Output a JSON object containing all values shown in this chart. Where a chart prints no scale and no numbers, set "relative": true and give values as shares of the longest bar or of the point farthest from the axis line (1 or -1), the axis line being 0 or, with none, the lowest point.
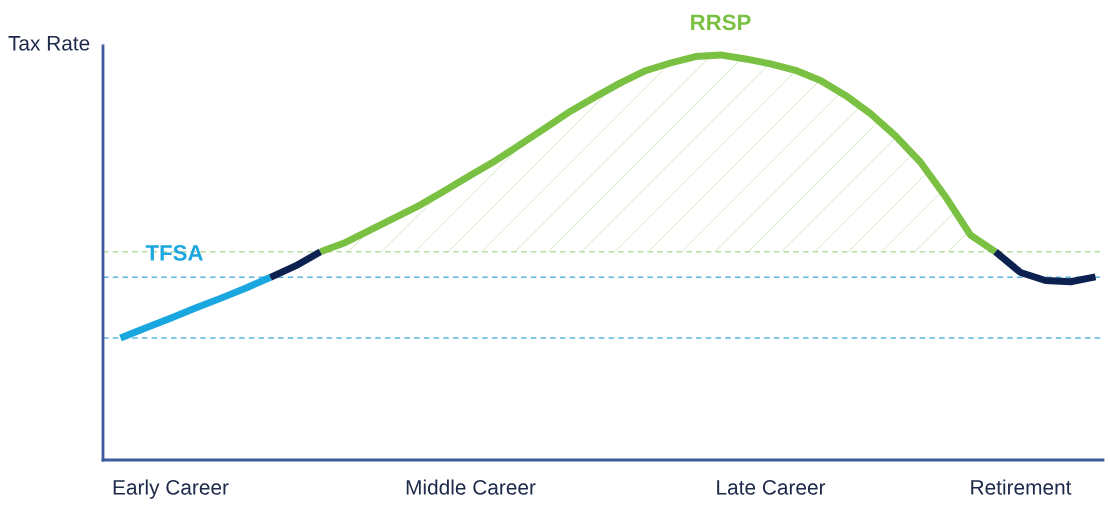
{
  "chart_data": {
    "type": "line",
    "relative": true,
    "ylabel": "Tax Rate",
    "categories": [
      null,
      null,
      "Early Career",
      null,
      null,
      null,
      null,
      null,
      null,
      null,
      null,
      null,
      null,
      null,
      "Middle Career",
      null,
      null,
      null,
      null,
      null,
      null,
      null,
      null,
      null,
      null,
      null,
      "Late Career",
      null,
      null,
      null,
      null,
      null,
      null,
      null,
      null,
      null,
      "Retirement",
      null,
      null,
      null
    ],
    "series": [
      {
        "name": "TFSA",
        "color": "#1aa7e0",
        "values": [
          0.301,
          0.326,
          0.35,
          0.375,
          0.399,
          0.424,
          0.451,
          null,
          null,
          null,
          null,
          null,
          null,
          null,
          null,
          null,
          null,
          null,
          null,
          null,
          null,
          null,
          null,
          null,
          null,
          null,
          null,
          null,
          null,
          null,
          null,
          null,
          null,
          null,
          null,
          null,
          null,
          null,
          null,
          null
        ]
      },
      {
        "color": "#0d2150",
        "values": [
          null,
          null,
          null,
          null,
          null,
          null,
          0.451,
          0.479,
          0.514,
          null,
          null,
          null,
          null,
          null,
          null,
          null,
          null,
          null,
          null,
          null,
          null,
          null,
          null,
          null,
          null,
          null,
          null,
          null,
          null,
          null,
          null,
          null,
          null,
          null,
          null,
          null,
          null,
          null,
          null,
          null
        ]
      },
      {
        "name": "RRSP",
        "color": "#7ac143",
        "values": [
          null,
          null,
          null,
          null,
          null,
          null,
          null,
          null,
          0.514,
          0.537,
          0.568,
          0.599,
          0.63,
          0.666,
          0.703,
          0.739,
          0.779,
          0.82,
          0.861,
          0.897,
          0.931,
          0.961,
          0.98,
          0.996,
          1.0,
          0.99,
          0.978,
          0.962,
          0.937,
          0.9,
          0.855,
          0.8,
          0.735,
          0.65,
          0.555,
          0.514,
          null,
          null,
          null,
          null
        ],
        "lower": [
          null,
          null,
          null,
          null,
          null,
          null,
          null,
          null,
          0.514,
          0.514,
          0.514,
          0.514,
          0.514,
          0.514,
          0.514,
          0.514,
          0.514,
          0.514,
          0.514,
          0.514,
          0.514,
          0.514,
          0.514,
          0.514,
          0.514,
          0.514,
          0.514,
          0.514,
          0.514,
          0.514,
          0.514,
          0.514,
          0.514,
          0.514,
          0.514,
          0.514,
          null,
          null,
          null,
          null
        ],
        "upper": [
          null,
          null,
          null,
          null,
          null,
          null,
          null,
          null,
          0.514,
          0.537,
          0.568,
          0.599,
          0.63,
          0.666,
          0.703,
          0.739,
          0.779,
          0.82,
          0.861,
          0.897,
          0.931,
          0.961,
          0.98,
          0.996,
          1.0,
          0.99,
          0.978,
          0.962,
          0.937,
          0.9,
          0.855,
          0.8,
          0.735,
          0.65,
          0.555,
          0.514,
          null,
          null,
          null,
          null
        ]
      },
      {
        "color": "#0d2150",
        "values": [
          null,
          null,
          null,
          null,
          null,
          null,
          null,
          null,
          null,
          null,
          null,
          null,
          null,
          null,
          null,
          null,
          null,
          null,
          null,
          null,
          null,
          null,
          null,
          null,
          null,
          null,
          null,
          null,
          null,
          null,
          null,
          null,
          null,
          null,
          null,
          0.514,
          0.463,
          0.443,
          0.44,
          0.452
        ]
      }
    ],
    "ref_lines": [
      {
        "axis": "y",
        "value": 0.514,
        "color": "#b9dca0",
        "line_style": "dashed"
      },
      {
        "axis": "y",
        "value": 0.451,
        "color": "#5ab8e0",
        "line_style": "dashed"
      },
      {
        "axis": "y",
        "value": 0.301,
        "color": "#5ab8e0",
        "line_style": "dashed"
      }
    ],
    "grid": false,
    "legend": false
  }
}
